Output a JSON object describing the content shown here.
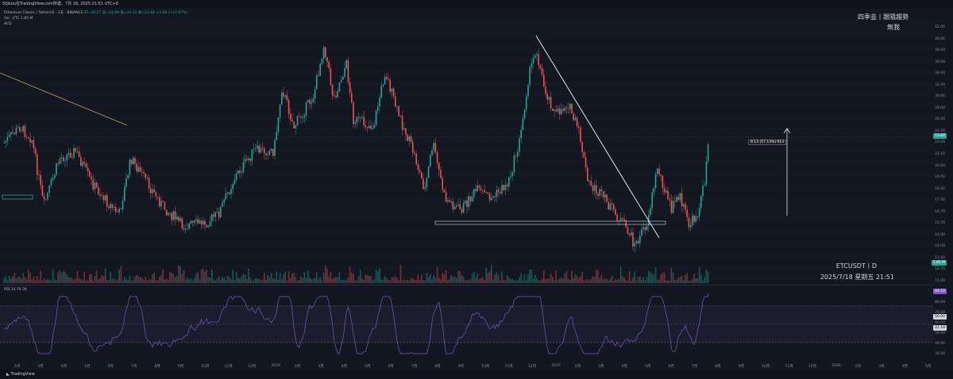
{
  "header": {
    "capture_text": "50Jiulu在TradingView.com所建，7月 18, 2025 21:51 UTC+8"
  },
  "legend": {
    "symbol_line": "Ethereum Classic / TetherUS · 1天 · BINANCE",
    "ohlc": "开=20.27  高=24.99  低=20.15  收=23.84  +3.58 (+17.67%)",
    "vol_line": "Vol · ETC  1.85 M",
    "extra_line": "ACD",
    "rsi_label": "RSI 14 70 30"
  },
  "watermark": {
    "line1": "四季韭丨跟隨趨勢",
    "line2": "無我",
    "ticker": "ETCUSDT丨D",
    "datetime": "2025/7/18 星期五 21:51"
  },
  "measure_label": "9.13 (57.13%) 913",
  "price_axis": [
    "42.00",
    "40.00",
    "38.00",
    "36.00",
    "34.00",
    "32.00",
    "30.00",
    "28.00",
    "26.00",
    "24.50",
    "23.00",
    "21.50",
    "20.50",
    "19.50",
    "18.50",
    "17.50",
    "16.70",
    "15.70",
    "14.90",
    "14.00",
    "13.40",
    "12.70",
    "11.90"
  ],
  "price_tags": {
    "last_price": "23.84",
    "volume": "1.85 M",
    "rsi_value": "84.50",
    "rsi_mid": "56.00",
    "rsi_low": "41.18"
  },
  "rsi_axis": [
    "90.00",
    "80.00",
    "70.00",
    "60.00",
    "50.00",
    "40.00",
    "30.00"
  ],
  "time_axis": [
    "2月",
    "3月",
    "4月",
    "5月",
    "6月",
    "7月",
    "8月",
    "9月",
    "10月",
    "11月",
    "12月",
    "2024",
    "2月",
    "3月",
    "4月",
    "5月",
    "6月",
    "7月",
    "8月",
    "9月",
    "10月",
    "11月",
    "12月",
    "2025",
    "2月",
    "3月",
    "4月",
    "5月",
    "6月",
    "7月",
    "8月",
    "9月",
    "10月",
    "11月",
    "12月",
    "2026",
    "2月",
    "3月",
    "4月",
    "5月"
  ],
  "footer": {
    "brand": "TradingView"
  },
  "colors": {
    "up": "#26a69a",
    "down": "#ef5350",
    "rsi_line": "#7e57c2",
    "background": "#131722"
  }
}
